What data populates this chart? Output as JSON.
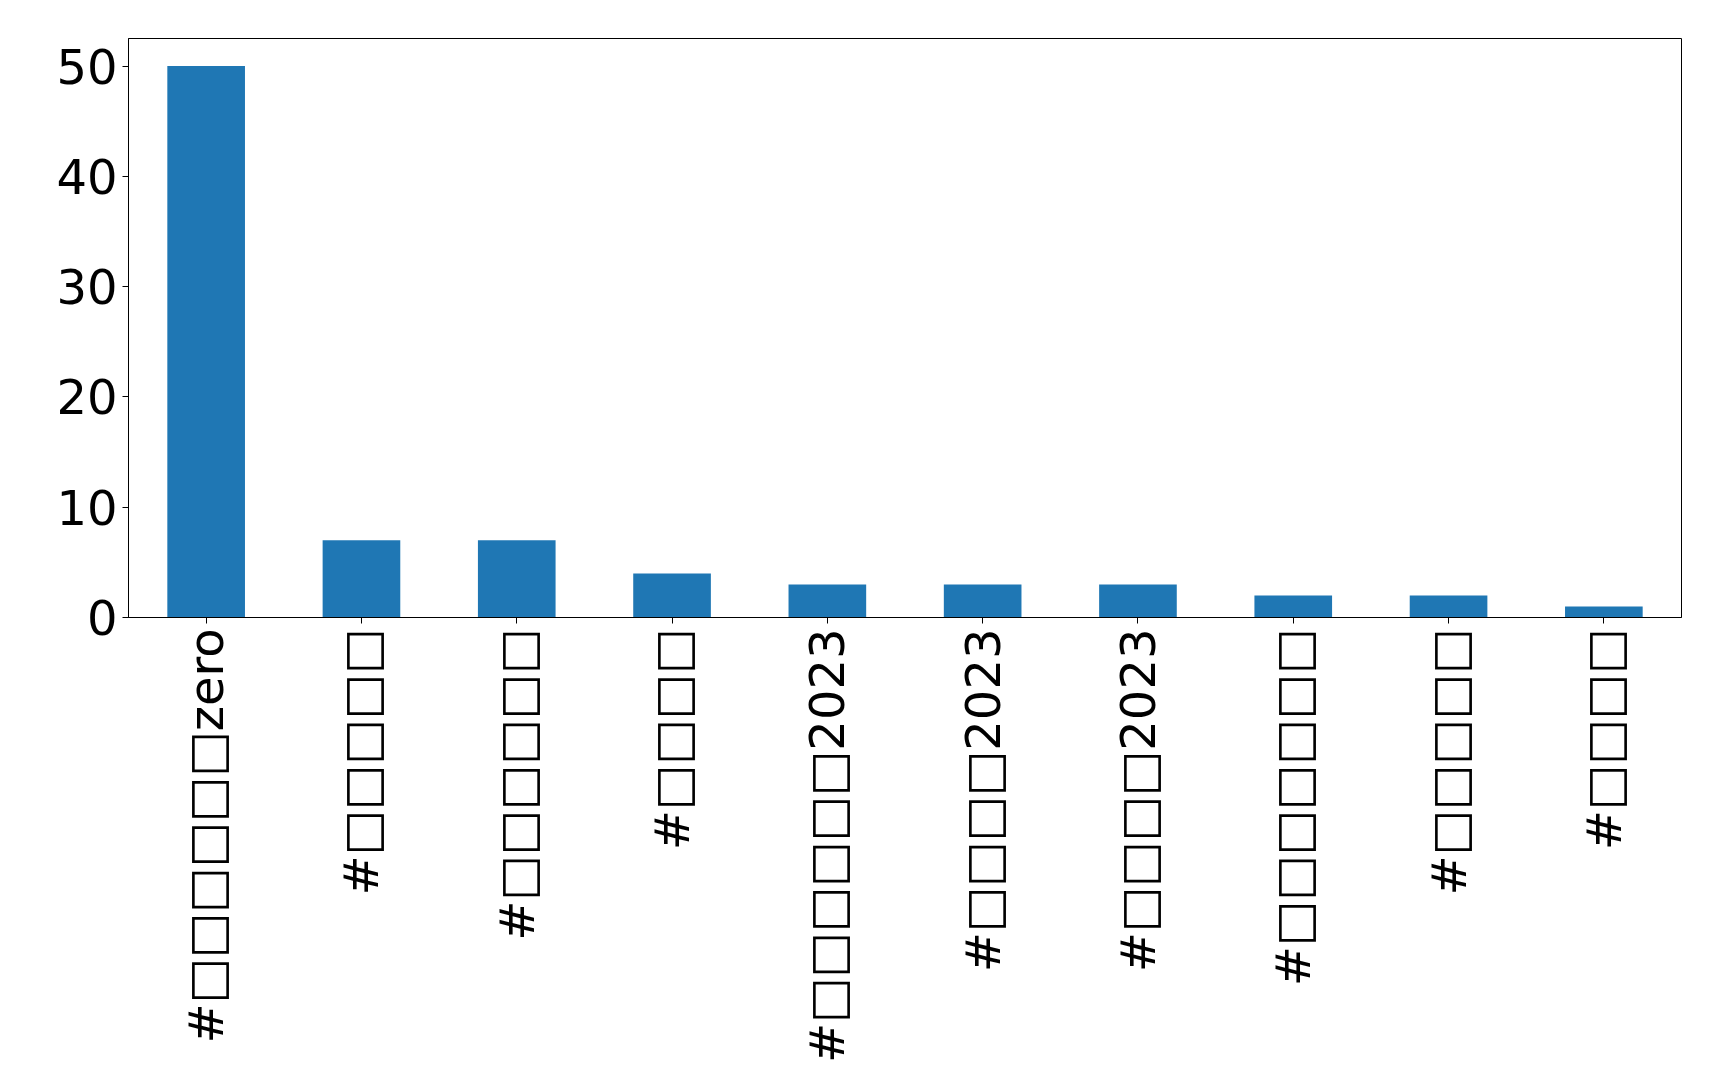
{
  "chart_data": {
    "type": "bar",
    "categories": [
      "#□□□□□□zero",
      "#□□□□□",
      "#□□□□□□",
      "#□□□□",
      "#□□□□□□2023",
      "#□□□□2023",
      "#□□□□2023",
      "#□□□□□□□",
      "#□□□□□",
      "#□□□□"
    ],
    "values": [
      50,
      7,
      7,
      4,
      3,
      3,
      3,
      2,
      2,
      1
    ],
    "color": "#1f77b4",
    "ylim": [
      0,
      52.5
    ],
    "yticks": [
      0,
      10,
      20,
      30,
      40,
      50
    ],
    "grid": false
  }
}
